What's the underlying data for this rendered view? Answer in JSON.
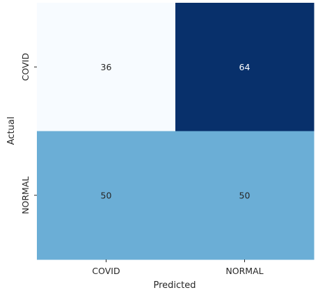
{
  "chart_data": {
    "type": "heatmap",
    "x_categories": [
      "COVID",
      "NORMAL"
    ],
    "y_categories": [
      "COVID",
      "NORMAL"
    ],
    "values": [
      [
        36,
        64
      ],
      [
        50,
        50
      ]
    ],
    "cell_labels": [
      [
        "36",
        "64"
      ],
      [
        "50",
        "50"
      ]
    ],
    "xlabel": "Predicted",
    "ylabel": "Actual",
    "colormap": "Blues",
    "value_range": [
      36,
      64
    ],
    "colorbar": false
  }
}
